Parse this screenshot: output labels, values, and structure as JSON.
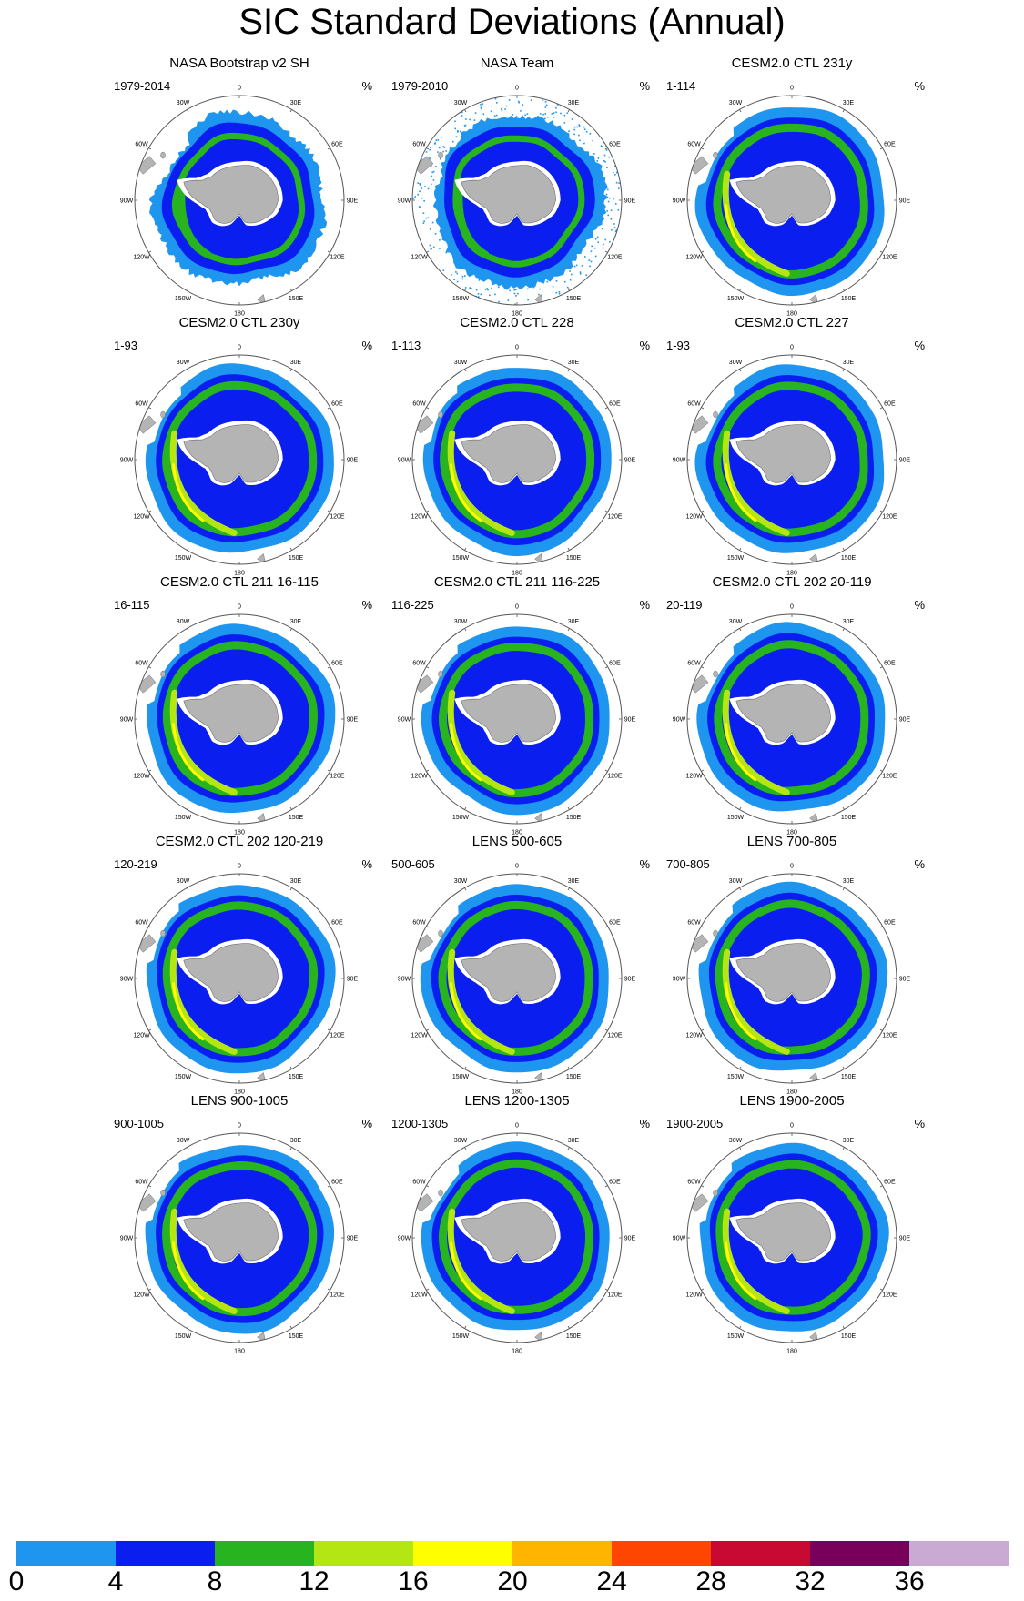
{
  "title": "SIC Standard Deviations (Annual)",
  "unit_label": "%",
  "lon_labels": [
    "0",
    "30E",
    "60E",
    "90E",
    "120E",
    "150E",
    "180",
    "150W",
    "120W",
    "90W",
    "60W",
    "30W"
  ],
  "colors": {
    "land": "#b4b4b4",
    "land_edge": "#6e6e6e",
    "circle": "#555555"
  },
  "colorbar": {
    "bins": [
      {
        "range": [
          0,
          4
        ],
        "color": "#1e96f0"
      },
      {
        "range": [
          4,
          8
        ],
        "color": "#0a1ef0"
      },
      {
        "range": [
          8,
          12
        ],
        "color": "#28b41e"
      },
      {
        "range": [
          12,
          16
        ],
        "color": "#b4e614"
      },
      {
        "range": [
          16,
          20
        ],
        "color": "#ffff00"
      },
      {
        "range": [
          20,
          24
        ],
        "color": "#ffb400"
      },
      {
        "range": [
          24,
          28
        ],
        "color": "#ff4600"
      },
      {
        "range": [
          28,
          32
        ],
        "color": "#c80a32"
      },
      {
        "range": [
          32,
          36
        ],
        "color": "#78005a"
      },
      {
        "range": [
          36,
          40
        ],
        "color": "#c8aad2"
      }
    ],
    "tick_labels": [
      "0",
      "4",
      "8",
      "12",
      "16",
      "20",
      "24",
      "28",
      "32",
      "36"
    ]
  },
  "panels": [
    {
      "title": "NASA Bootstrap v2 SH",
      "period": "1979-2014",
      "style": "obs"
    },
    {
      "title": "NASA Team",
      "period": "1979-2010",
      "style": "obs_team"
    },
    {
      "title": "CESM2.0 CTL 231y",
      "period": "1-114",
      "style": "model"
    },
    {
      "title": "CESM2.0 CTL 230y",
      "period": "1-93",
      "style": "model"
    },
    {
      "title": "CESM2.0 CTL 228",
      "period": "1-113",
      "style": "model"
    },
    {
      "title": "CESM2.0 CTL 227",
      "period": "1-93",
      "style": "model"
    },
    {
      "title": "CESM2.0 CTL 211 16-115",
      "period": "16-115",
      "style": "model"
    },
    {
      "title": "CESM2.0 CTL 211 116-225",
      "period": "116-225",
      "style": "model"
    },
    {
      "title": "CESM2.0 CTL 202 20-119",
      "period": "20-119",
      "style": "model"
    },
    {
      "title": "CESM2.0 CTL 202 120-219",
      "period": "120-219",
      "style": "model"
    },
    {
      "title": "LENS 500-605",
      "period": "500-605",
      "style": "model"
    },
    {
      "title": "LENS 700-805",
      "period": "700-805",
      "style": "model"
    },
    {
      "title": "LENS 900-1005",
      "period": "900-1005",
      "style": "model"
    },
    {
      "title": "LENS 1200-1305",
      "period": "1200-1305",
      "style": "model"
    },
    {
      "title": "LENS 1900-2005",
      "period": "1900-2005",
      "style": "model"
    }
  ]
}
